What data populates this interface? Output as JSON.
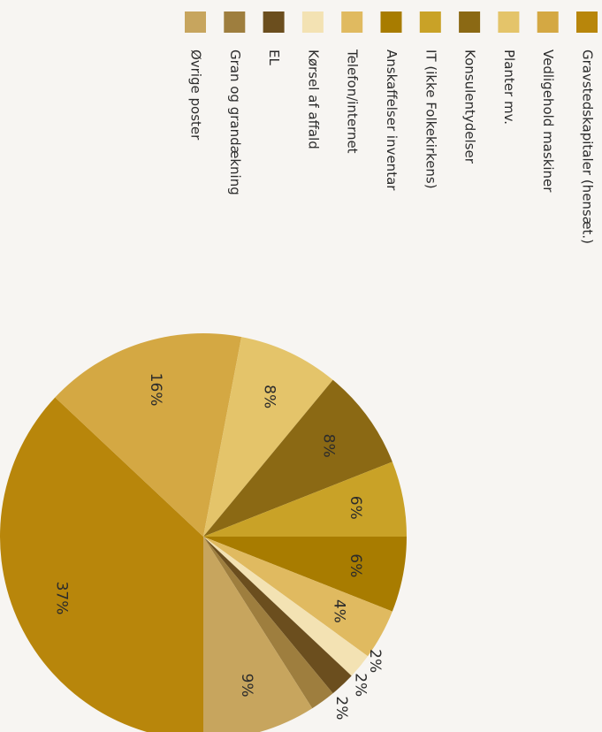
{
  "chart_data": {
    "type": "pie",
    "title": "",
    "legend_position": "top",
    "slices": [
      {
        "label": "Gravstedskapitaler (hensæt.)",
        "value": 37,
        "color": "#B8860B",
        "value_label": "37%"
      },
      {
        "label": "Vedligehold maskiner",
        "value": 16,
        "color": "#D4A843",
        "value_label": "16%"
      },
      {
        "label": "Planter mv.",
        "value": 8,
        "color": "#E4C46A",
        "value_label": "8%"
      },
      {
        "label": "Konsulentydelser",
        "value": 8,
        "color": "#8B6914",
        "value_label": "8%"
      },
      {
        "label": "IT (ikke Folkekirkens)",
        "value": 6,
        "color": "#C9A227",
        "value_label": "6%"
      },
      {
        "label": "Anskaffelser inventar",
        "value": 6,
        "color": "#A87C00",
        "value_label": "6%"
      },
      {
        "label": "Telefon/internet",
        "value": 4,
        "color": "#E0BA60",
        "value_label": "4%"
      },
      {
        "label": "Kørsel af affald",
        "value": 2,
        "color": "#F3E2B3",
        "value_label": "2%"
      },
      {
        "label": "EL",
        "value": 2,
        "color": "#6B4E1E",
        "value_label": "2%"
      },
      {
        "label": "Gran og grandækning",
        "value": 2,
        "color": "#9E7E3E",
        "value_label": "2%"
      },
      {
        "label": "Øvrige poster",
        "value": 9,
        "color": "#C7A55E",
        "value_label": "9%"
      }
    ]
  }
}
